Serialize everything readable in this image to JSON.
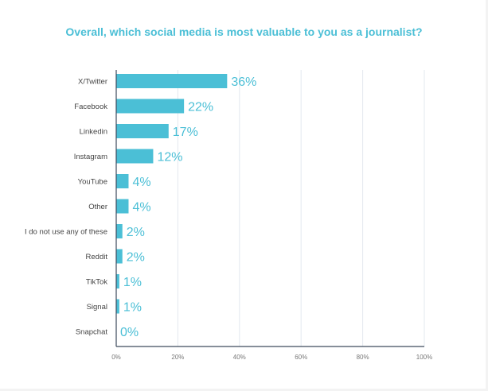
{
  "chart_data": {
    "type": "bar",
    "orientation": "horizontal",
    "title": "Overall, which social media is most valuable to you as a journalist?",
    "categories": [
      "X/Twitter",
      "Facebook",
      "Linkedin",
      "Instagram",
      "YouTube",
      "Other",
      "I do not use any of these",
      "Reddit",
      "TikTok",
      "Signal",
      "Snapchat"
    ],
    "values": [
      36,
      22,
      17,
      12,
      4,
      4,
      2,
      2,
      1,
      1,
      0
    ],
    "data_labels": [
      "36%",
      "22%",
      "17%",
      "12%",
      "4%",
      "4%",
      "2%",
      "2%",
      "1%",
      "1%",
      "0%"
    ],
    "xlim": [
      0,
      100
    ],
    "x_ticks": [
      0,
      20,
      40,
      60,
      80,
      100
    ],
    "x_tick_labels": [
      "0%",
      "20%",
      "40%",
      "60%",
      "80%",
      "100%"
    ],
    "grid": true,
    "bar_color": "#4bbfd6",
    "label_color": "#4bbfd6"
  }
}
